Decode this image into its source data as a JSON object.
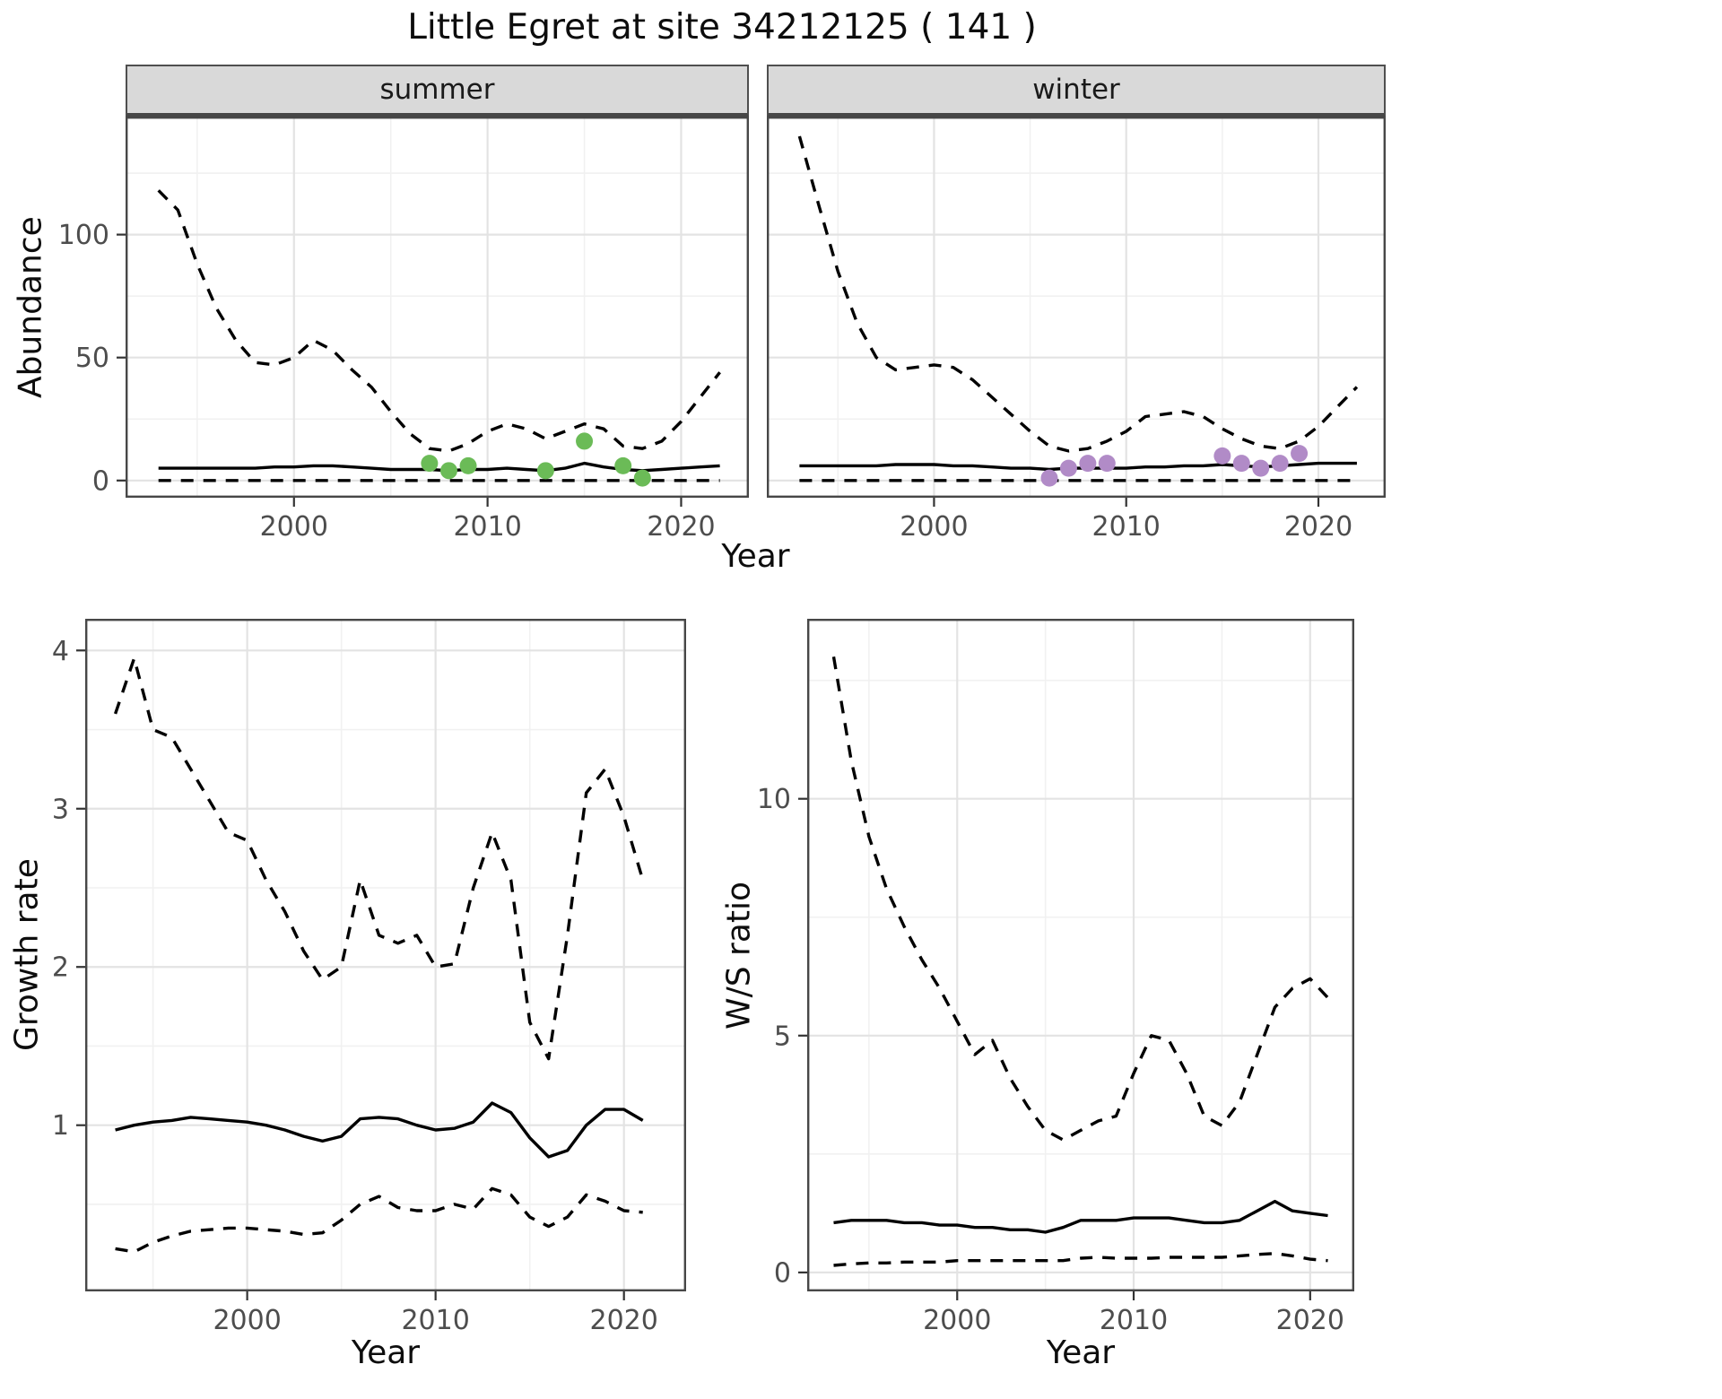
{
  "title": "Little Egret at site 34212125 ( 141 )",
  "chart_data": [
    {
      "id": "abundance-summer",
      "type": "line",
      "facet_label": "summer",
      "xlabel": "Year",
      "ylabel": "Abundance",
      "xlim": [
        1991.3,
        2023.5
      ],
      "ylim": [
        -7,
        148
      ],
      "xticks": [
        2000,
        2010,
        2020
      ],
      "yticks": [
        0,
        50,
        100
      ],
      "years": [
        1993,
        1994,
        1995,
        1996,
        1997,
        1998,
        1999,
        2000,
        2001,
        2002,
        2003,
        2004,
        2005,
        2006,
        2007,
        2008,
        2009,
        2010,
        2011,
        2012,
        2013,
        2014,
        2015,
        2016,
        2017,
        2018,
        2019,
        2020,
        2021,
        2022
      ],
      "series": [
        {
          "name": "upper_95ci",
          "style": "dashed",
          "color": "#000000",
          "values": [
            118,
            110,
            88,
            70,
            57,
            48,
            47,
            50,
            57,
            53,
            45,
            38,
            28,
            19,
            13,
            12,
            15,
            20,
            23,
            21,
            17,
            20,
            23,
            21,
            14,
            13,
            16,
            24,
            34,
            44
          ]
        },
        {
          "name": "median",
          "style": "solid",
          "color": "#000000",
          "values": [
            5,
            5,
            5,
            5,
            5,
            5,
            5.5,
            5.5,
            6,
            6,
            5.5,
            5,
            4.5,
            4.5,
            4.5,
            4,
            4.5,
            4.5,
            5,
            4.5,
            4,
            5,
            7,
            5.5,
            4.5,
            4,
            4.5,
            5,
            5.5,
            6
          ]
        },
        {
          "name": "lower_95ci",
          "style": "dashed",
          "color": "#000000",
          "values": [
            0,
            0,
            0,
            0,
            0,
            0,
            0,
            0,
            0,
            0,
            0,
            0,
            0,
            0,
            0,
            0,
            0,
            0,
            0,
            0,
            0,
            0,
            0,
            0,
            0,
            0,
            0,
            0,
            0,
            0
          ]
        }
      ],
      "points": {
        "name": "observed-summer-counts",
        "color": "#6bbb57",
        "x": [
          2007,
          2008,
          2009,
          2013,
          2015,
          2017,
          2018
        ],
        "y": [
          7,
          4,
          6,
          4,
          16,
          6,
          1
        ]
      }
    },
    {
      "id": "abundance-winter",
      "type": "line",
      "facet_label": "winter",
      "xlabel": "Year",
      "ylabel": "Abundance",
      "xlim": [
        1991.3,
        2023.5
      ],
      "ylim": [
        -7,
        148
      ],
      "xticks": [
        2000,
        2010,
        2020
      ],
      "yticks": [
        0,
        50,
        100
      ],
      "years": [
        1993,
        1994,
        1995,
        1996,
        1997,
        1998,
        1999,
        2000,
        2001,
        2002,
        2003,
        2004,
        2005,
        2006,
        2007,
        2008,
        2009,
        2010,
        2011,
        2012,
        2013,
        2014,
        2015,
        2016,
        2017,
        2018,
        2019,
        2020,
        2021,
        2022
      ],
      "series": [
        {
          "name": "upper_95ci",
          "style": "dashed",
          "color": "#000000",
          "values": [
            140,
            112,
            85,
            64,
            50,
            45,
            46,
            47,
            46,
            41,
            34,
            27,
            20,
            14,
            12,
            13,
            16,
            20,
            26,
            27,
            28,
            26,
            21,
            17,
            14,
            13,
            16,
            22,
            30,
            38
          ]
        },
        {
          "name": "median",
          "style": "solid",
          "color": "#000000",
          "values": [
            6,
            6,
            6,
            6,
            6,
            6.5,
            6.5,
            6.5,
            6,
            6,
            5.5,
            5,
            5,
            4.5,
            5,
            5,
            5,
            5,
            5.5,
            5.5,
            6,
            6,
            6.5,
            6,
            5.5,
            6,
            6.5,
            7,
            7,
            7
          ]
        },
        {
          "name": "lower_95ci",
          "style": "dashed",
          "color": "#000000",
          "values": [
            0,
            0,
            0,
            0,
            0,
            0,
            0,
            0,
            0,
            0,
            0,
            0,
            0,
            0,
            0,
            0,
            0,
            0,
            0,
            0,
            0,
            0,
            0,
            0,
            0,
            0,
            0,
            0,
            0,
            0
          ]
        }
      ],
      "points": {
        "name": "observed-winter-counts",
        "color": "#b18bc7",
        "x": [
          2006,
          2007,
          2008,
          2009,
          2015,
          2016,
          2017,
          2018,
          2019
        ],
        "y": [
          1,
          5,
          7,
          7,
          10,
          7,
          5,
          7,
          11
        ]
      }
    },
    {
      "id": "growth-rate",
      "type": "line",
      "facet_label": "",
      "xlabel": "Year",
      "ylabel": "Growth rate",
      "xlim": [
        1991.4,
        2023.3
      ],
      "ylim": [
        -0.05,
        4.2
      ],
      "xticks": [
        2000,
        2010,
        2020
      ],
      "yticks": [
        1,
        2,
        3,
        4
      ],
      "years": [
        1993,
        1994,
        1995,
        1996,
        1997,
        1998,
        1999,
        2000,
        2001,
        2002,
        2003,
        2004,
        2005,
        2006,
        2007,
        2008,
        2009,
        2010,
        2011,
        2012,
        2013,
        2014,
        2015,
        2016,
        2017,
        2018,
        2019,
        2020,
        2021
      ],
      "series": [
        {
          "name": "upper_95ci",
          "style": "dashed",
          "color": "#000000",
          "values": [
            3.6,
            3.95,
            3.5,
            3.45,
            3.25,
            3.05,
            2.85,
            2.8,
            2.55,
            2.35,
            2.1,
            1.92,
            2.0,
            2.55,
            2.2,
            2.15,
            2.2,
            2.0,
            2.02,
            2.5,
            2.85,
            2.55,
            1.65,
            1.42,
            2.2,
            3.1,
            3.25,
            2.95,
            2.55
          ]
        },
        {
          "name": "median",
          "style": "solid",
          "color": "#000000",
          "values": [
            0.97,
            1.0,
            1.02,
            1.03,
            1.05,
            1.04,
            1.03,
            1.02,
            1.0,
            0.97,
            0.93,
            0.9,
            0.93,
            1.04,
            1.05,
            1.04,
            1.0,
            0.97,
            0.98,
            1.02,
            1.14,
            1.08,
            0.92,
            0.8,
            0.84,
            1.0,
            1.1,
            1.1,
            1.03
          ]
        },
        {
          "name": "lower_95ci",
          "style": "dashed",
          "color": "#000000",
          "values": [
            0.22,
            0.2,
            0.26,
            0.3,
            0.33,
            0.34,
            0.35,
            0.35,
            0.34,
            0.33,
            0.31,
            0.32,
            0.4,
            0.5,
            0.55,
            0.48,
            0.46,
            0.46,
            0.5,
            0.47,
            0.6,
            0.56,
            0.42,
            0.36,
            0.42,
            0.56,
            0.52,
            0.46,
            0.45
          ]
        }
      ]
    },
    {
      "id": "ws-ratio",
      "type": "line",
      "facet_label": "",
      "xlabel": "Year",
      "ylabel": "W/S ratio",
      "xlim": [
        1991.5,
        2022.5
      ],
      "ylim": [
        -0.4,
        13.8
      ],
      "xticks": [
        2000,
        2010,
        2020
      ],
      "yticks": [
        0,
        5,
        10
      ],
      "years": [
        1993,
        1994,
        1995,
        1996,
        1997,
        1998,
        1999,
        2000,
        2001,
        2002,
        2003,
        2004,
        2005,
        2006,
        2007,
        2008,
        2009,
        2010,
        2011,
        2012,
        2013,
        2014,
        2015,
        2016,
        2017,
        2018,
        2019,
        2020,
        2021
      ],
      "series": [
        {
          "name": "upper_95ci",
          "style": "dashed",
          "color": "#000000",
          "values": [
            13,
            10.8,
            9.2,
            8.1,
            7.3,
            6.6,
            6.0,
            5.3,
            4.6,
            4.9,
            4.1,
            3.5,
            3.0,
            2.8,
            3.0,
            3.2,
            3.3,
            4.2,
            5.0,
            4.9,
            4.2,
            3.3,
            3.1,
            3.6,
            4.6,
            5.6,
            6.0,
            6.2,
            5.8
          ]
        },
        {
          "name": "median",
          "style": "solid",
          "color": "#000000",
          "values": [
            1.05,
            1.1,
            1.1,
            1.1,
            1.05,
            1.05,
            1.0,
            1.0,
            0.95,
            0.95,
            0.9,
            0.9,
            0.85,
            0.95,
            1.1,
            1.1,
            1.1,
            1.15,
            1.15,
            1.15,
            1.1,
            1.05,
            1.05,
            1.1,
            1.3,
            1.5,
            1.3,
            1.25,
            1.2
          ]
        },
        {
          "name": "lower_95ci",
          "style": "dashed",
          "color": "#000000",
          "values": [
            0.15,
            0.18,
            0.2,
            0.2,
            0.22,
            0.22,
            0.22,
            0.25,
            0.25,
            0.25,
            0.25,
            0.25,
            0.25,
            0.25,
            0.3,
            0.32,
            0.3,
            0.3,
            0.3,
            0.32,
            0.32,
            0.32,
            0.32,
            0.35,
            0.38,
            0.4,
            0.35,
            0.28,
            0.25
          ]
        }
      ]
    }
  ]
}
